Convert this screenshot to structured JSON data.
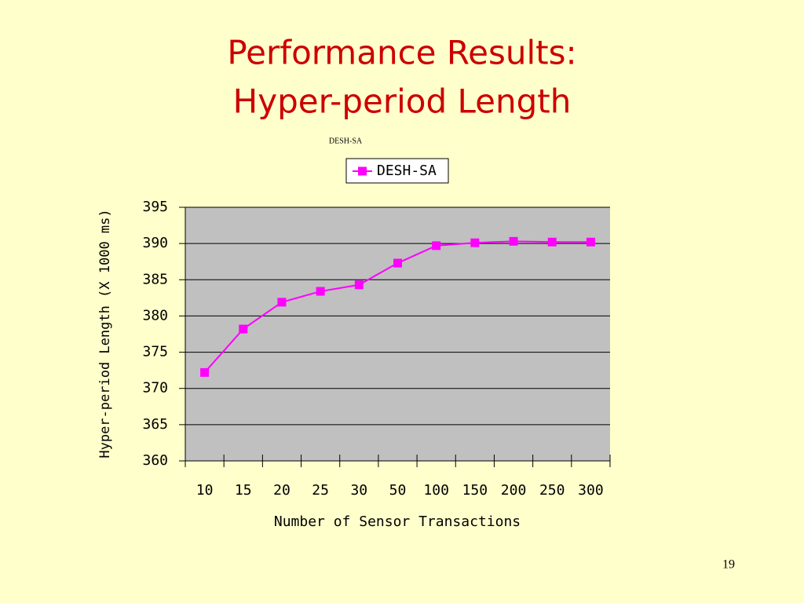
{
  "slide": {
    "title": [
      "Performance Results:",
      "Hyper-period Length"
    ],
    "page_number": "19"
  },
  "chart_data": {
    "type": "line",
    "title": "DESH-SA",
    "x_label": "Number of Sensor Transactions",
    "y_label": "Hyper-period Length (X 1000 ms)",
    "categories": [
      "10",
      "15",
      "20",
      "25",
      "30",
      "50",
      "100",
      "150",
      "200",
      "250",
      "300"
    ],
    "series": [
      {
        "name": "DESH-SA",
        "color": "#ff00ff",
        "values": [
          372.2,
          378.2,
          381.9,
          383.4,
          384.3,
          387.3,
          389.7,
          390.1,
          390.3,
          390.2,
          390.2
        ]
      }
    ],
    "ylim": [
      360,
      395
    ],
    "yticks": [
      360,
      365,
      370,
      375,
      380,
      385,
      390,
      395
    ],
    "grid": true,
    "legend": "top",
    "plot_color": "#c0c0c0"
  }
}
